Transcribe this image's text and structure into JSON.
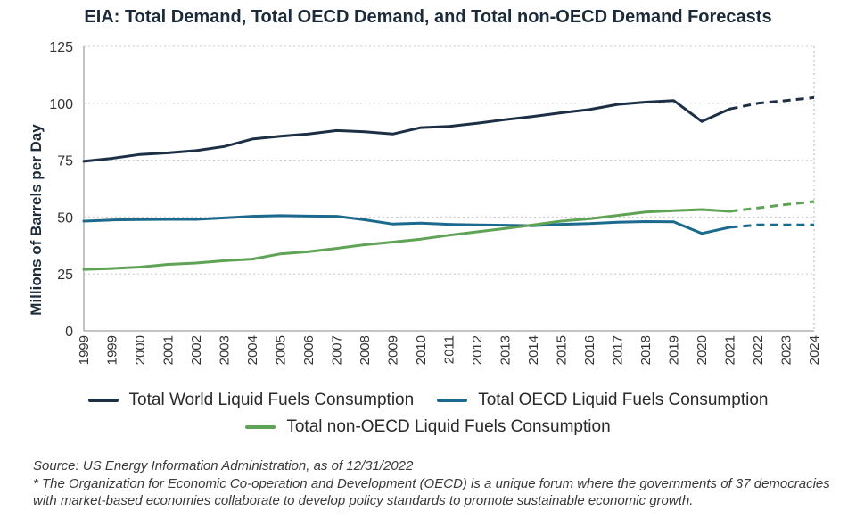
{
  "chart_data": {
    "type": "line",
    "title": "EIA: Total Demand, Total OECD Demand, and Total non-OECD Demand Forecasts",
    "xlabel": "",
    "ylabel": "Millions of Barrels per Day",
    "ylim": [
      0,
      125
    ],
    "yticks": [
      0,
      25,
      50,
      75,
      100,
      125
    ],
    "categories": [
      "1999",
      "1999",
      "2000",
      "2001",
      "2002",
      "2003",
      "2004",
      "2005",
      "2006",
      "2007",
      "2008",
      "2009",
      "2010",
      "2011",
      "2012",
      "2013",
      "2014",
      "2015",
      "2016",
      "2017",
      "2018",
      "2019",
      "2020",
      "2021",
      "2022",
      "2023",
      "2024"
    ],
    "forecast_start_index": 23,
    "series": [
      {
        "name": "Total World Liquid Fuels Consumption",
        "color": "#1c2f45",
        "values": [
          74.5,
          75.8,
          77.5,
          78.2,
          79.2,
          81.0,
          84.3,
          85.5,
          86.5,
          88.0,
          87.5,
          86.5,
          89.3,
          89.8,
          91.2,
          92.8,
          94.2,
          95.8,
          97.2,
          99.5,
          100.5,
          101.2,
          92.0,
          97.5,
          100.0,
          101.2,
          102.5
        ]
      },
      {
        "name": "Total OECD Liquid Fuels Consumption",
        "color": "#1b6a8e",
        "values": [
          48.2,
          48.7,
          48.9,
          49.0,
          49.0,
          49.6,
          50.3,
          50.6,
          50.4,
          50.3,
          48.8,
          46.9,
          47.3,
          46.8,
          46.5,
          46.4,
          46.2,
          46.8,
          47.1,
          47.7,
          48.0,
          47.9,
          42.8,
          45.5,
          46.5,
          46.5,
          46.5
        ]
      },
      {
        "name": "Total non-OECD Liquid Fuels Consumption",
        "color": "#5fa356",
        "values": [
          27.0,
          27.4,
          28.0,
          29.2,
          29.8,
          30.8,
          31.5,
          33.8,
          34.8,
          36.2,
          37.8,
          39.0,
          40.3,
          42.0,
          43.5,
          45.0,
          46.5,
          48.2,
          49.2,
          50.7,
          52.2,
          52.8,
          53.3,
          52.5,
          54.0,
          55.5,
          56.8
        ]
      }
    ]
  },
  "legend": {
    "world": "Total World Liquid Fuels Consumption",
    "oecd": "Total OECD Liquid Fuels Consumption",
    "nonoecd": "Total non-OECD Liquid Fuels Consumption"
  },
  "footnote": {
    "source": "Source: US Energy Information Administration, as of 12/31/2022",
    "note": "* The Organization for Economic Co-operation and Development (OECD) is a unique forum where the governments of 37 democracies with market-based economies collaborate to develop policy standards to promote sustainable economic growth."
  }
}
